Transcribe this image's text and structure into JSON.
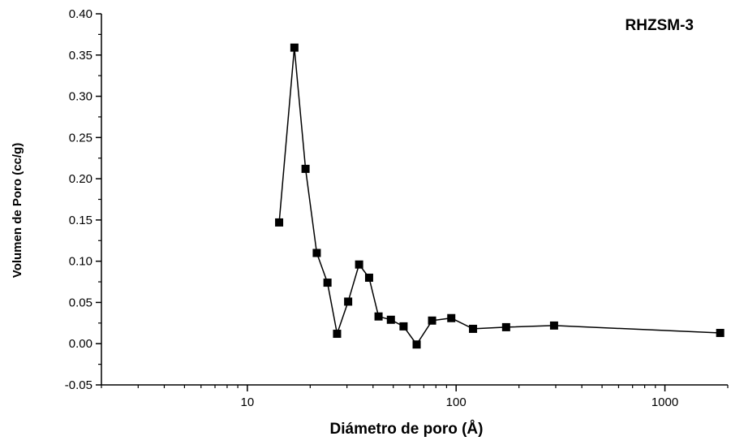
{
  "chart_data": {
    "type": "line",
    "title": "RHZSM-3",
    "xlabel": "Diámetro de poro (Å)",
    "ylabel": "Volumen de Poro (cc/g)",
    "x_scale": "log",
    "xlim": [
      2,
      2000
    ],
    "ylim": [
      -0.05,
      0.4
    ],
    "x_ticks": [
      "10",
      "100",
      "1000"
    ],
    "y_ticks": [
      "-0.05",
      "0.00",
      "0.05",
      "0.10",
      "0.15",
      "0.20",
      "0.25",
      "0.30",
      "0.35",
      "0.40"
    ],
    "grid": false,
    "marker": "square",
    "series": [
      {
        "x": [
          14.2,
          16.8,
          19.0,
          21.5,
          24.2,
          26.9,
          30.4,
          34.3,
          38.3,
          42.5,
          48.7,
          56.0,
          64.7,
          76.7,
          94.8,
          120.5,
          173.6,
          294.5,
          1840.0
        ],
        "values": [
          0.147,
          0.359,
          0.212,
          0.11,
          0.074,
          0.012,
          0.051,
          0.096,
          0.08,
          0.033,
          0.029,
          0.021,
          -0.001,
          0.028,
          0.031,
          0.018,
          0.02,
          0.022,
          0.013
        ]
      }
    ]
  }
}
